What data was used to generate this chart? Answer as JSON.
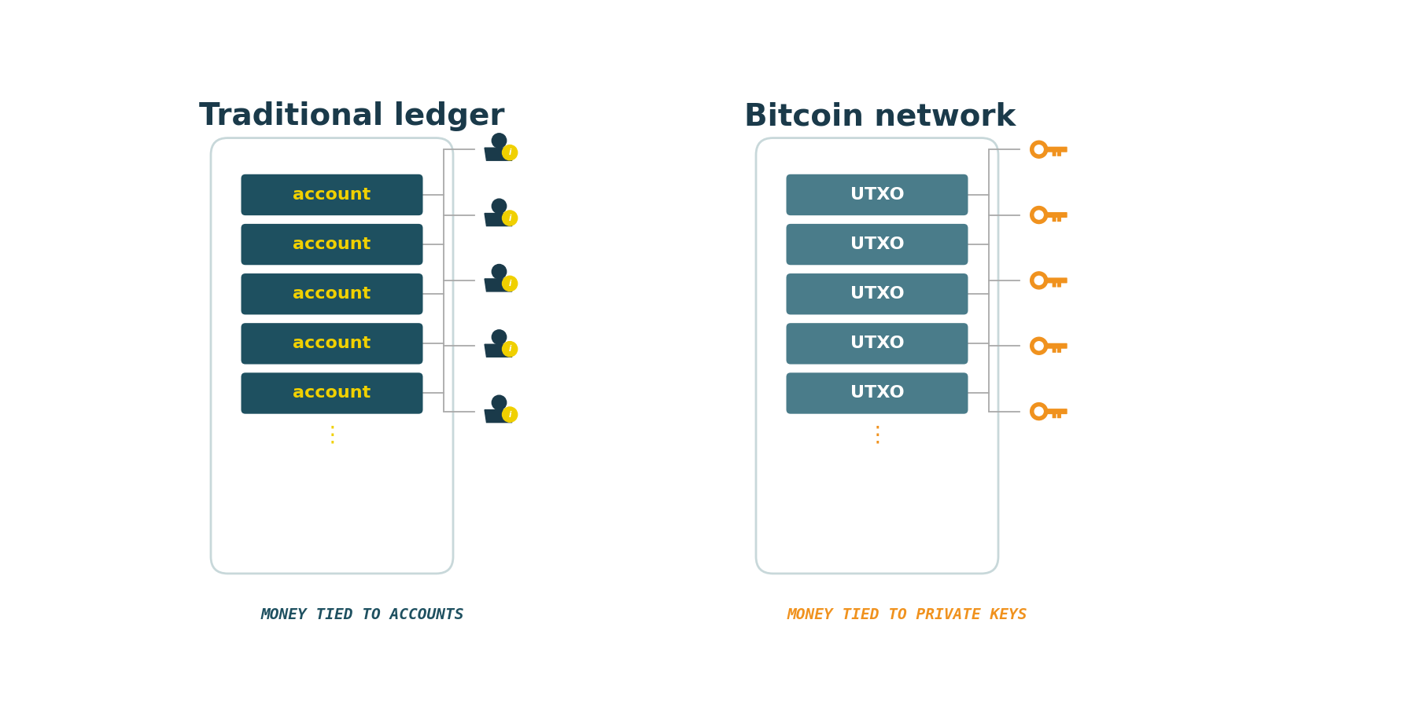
{
  "bg_color": "#ffffff",
  "bg_rect_color": "#ccd9db",
  "card_color": "#ffffff",
  "card_border": "#c8d8da",
  "teal_box_left": "#1e5060",
  "teal_box_right": "#4a7c8a",
  "left_title": "Traditional ledger",
  "right_title": "Bitcoin network",
  "left_subtitle": "MONEY TIED TO ACCOUNTS",
  "right_subtitle": "MONEY TIED TO PRIVATE KEYS",
  "left_subtitle_color": "#1e5060",
  "right_subtitle_color": "#f0921e",
  "title_color": "#1a3a4a",
  "account_label": "account",
  "utxo_label": "UTXO",
  "box_text_color_left": "#f0d000",
  "box_text_color_right": "#ffffff",
  "dots_color_left": "#f0d000",
  "dots_color_right": "#f0921e",
  "line_color": "#aaaaaa",
  "key_color": "#f0921e",
  "person_color": "#1a3a4a",
  "info_color": "#f0d000",
  "n_rows": 5,
  "fig_w": 18.0,
  "fig_h": 9.24
}
